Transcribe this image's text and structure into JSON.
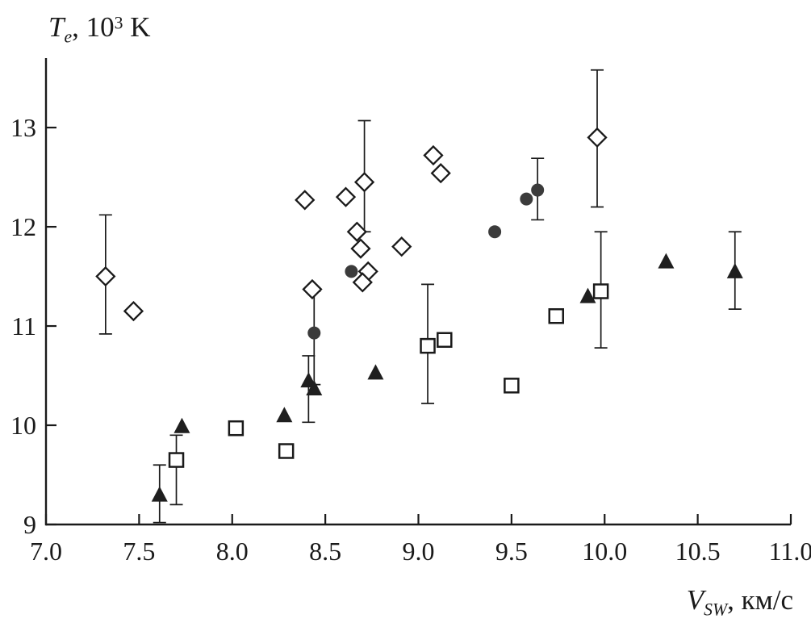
{
  "axis_titles": {
    "y": {
      "symbol": "T",
      "symbol_sub": "e",
      "mid": ", 10",
      "exp": "3",
      "end": " K"
    },
    "x": {
      "symbol": "V",
      "symbol_sub": "SW",
      "end": ", км/с"
    }
  },
  "chart_data": {
    "type": "scatter",
    "title": "",
    "xlabel": "V_SW, км/с",
    "ylabel": "T_e, 10^3 K",
    "xlim": [
      7.0,
      11.0
    ],
    "ylim": [
      9.0,
      13.7
    ],
    "grid": false,
    "legend": "none",
    "x_ticks": [
      {
        "v": 7.0,
        "label": "7.0"
      },
      {
        "v": 7.5,
        "label": "7.5"
      },
      {
        "v": 8.0,
        "label": "8.0"
      },
      {
        "v": 8.5,
        "label": "8.5"
      },
      {
        "v": 9.0,
        "label": "9.0"
      },
      {
        "v": 9.5,
        "label": "9.5"
      },
      {
        "v": 10.0,
        "label": "10.0"
      },
      {
        "v": 10.5,
        "label": "10.5"
      },
      {
        "v": 11.0,
        "label": "11.0"
      }
    ],
    "y_ticks": [
      {
        "v": 9,
        "label": "9"
      },
      {
        "v": 10,
        "label": "10"
      },
      {
        "v": 11,
        "label": "11"
      },
      {
        "v": 12,
        "label": "12"
      },
      {
        "v": 13,
        "label": "13"
      }
    ],
    "series": [
      {
        "name": "open-diamonds",
        "marker": "diamond",
        "filled": false,
        "points": [
          {
            "x": 7.32,
            "y": 11.5,
            "err_hi": 0.62,
            "err_lo": 0.58
          },
          {
            "x": 7.47,
            "y": 11.15
          },
          {
            "x": 8.39,
            "y": 12.27
          },
          {
            "x": 8.61,
            "y": 12.3
          },
          {
            "x": 8.71,
            "y": 12.45,
            "err_hi": 0.62,
            "err_lo": 0.5
          },
          {
            "x": 8.67,
            "y": 11.95
          },
          {
            "x": 8.69,
            "y": 11.78
          },
          {
            "x": 8.73,
            "y": 11.55
          },
          {
            "x": 8.7,
            "y": 11.44
          },
          {
            "x": 8.43,
            "y": 11.37
          },
          {
            "x": 8.91,
            "y": 11.8
          },
          {
            "x": 9.08,
            "y": 12.72
          },
          {
            "x": 9.12,
            "y": 12.54
          },
          {
            "x": 9.96,
            "y": 12.9,
            "err_hi": 0.68,
            "err_lo": 0.7
          }
        ]
      },
      {
        "name": "filled-circles",
        "marker": "circle",
        "filled": true,
        "points": [
          {
            "x": 8.64,
            "y": 11.55
          },
          {
            "x": 8.44,
            "y": 10.93,
            "err_hi": 0.42,
            "err_lo": 0.52
          },
          {
            "x": 9.41,
            "y": 11.95
          },
          {
            "x": 9.58,
            "y": 12.28
          },
          {
            "x": 9.64,
            "y": 12.37,
            "err_hi": 0.32,
            "err_lo": 0.3
          }
        ]
      },
      {
        "name": "open-squares",
        "marker": "square",
        "filled": false,
        "points": [
          {
            "x": 7.7,
            "y": 9.65,
            "err_hi": 0.25,
            "err_lo": 0.45
          },
          {
            "x": 8.02,
            "y": 9.97
          },
          {
            "x": 8.29,
            "y": 9.74
          },
          {
            "x": 9.05,
            "y": 10.8,
            "err_hi": 0.62,
            "err_lo": 0.58
          },
          {
            "x": 9.14,
            "y": 10.86
          },
          {
            "x": 9.5,
            "y": 10.4
          },
          {
            "x": 9.74,
            "y": 11.1
          },
          {
            "x": 9.98,
            "y": 11.35,
            "err_hi": 0.6,
            "err_lo": 0.57
          }
        ]
      },
      {
        "name": "filled-triangles",
        "marker": "triangle",
        "filled": true,
        "points": [
          {
            "x": 7.61,
            "y": 9.3,
            "err_hi": 0.3,
            "err_lo": 0.28
          },
          {
            "x": 7.73,
            "y": 9.99
          },
          {
            "x": 8.28,
            "y": 10.1
          },
          {
            "x": 8.41,
            "y": 10.45,
            "err_hi": 0.25,
            "err_lo": 0.42
          },
          {
            "x": 8.44,
            "y": 10.37
          },
          {
            "x": 8.77,
            "y": 10.53
          },
          {
            "x": 9.91,
            "y": 11.3
          },
          {
            "x": 10.33,
            "y": 11.65
          },
          {
            "x": 10.7,
            "y": 11.55,
            "err_hi": 0.4,
            "err_lo": 0.38
          }
        ]
      }
    ]
  }
}
